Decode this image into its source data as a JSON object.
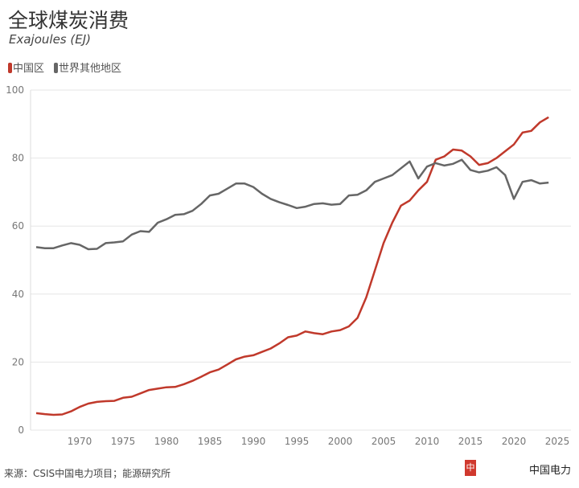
{
  "title": "全球煤炭消费",
  "subtitle": "Exajoules (EJ)",
  "source": "来源：CSIS中国电力项目；能源研究所",
  "brand": "中国电力",
  "chart_data": {
    "type": "line",
    "title": "全球煤炭消费",
    "ylabel": "Exajoules (EJ)",
    "ylim": [
      0,
      100
    ],
    "yticks": [
      0,
      20,
      40,
      60,
      80,
      100
    ],
    "xlim": [
      1965,
      2025
    ],
    "xticks": [
      1970,
      1975,
      1980,
      1985,
      1990,
      1995,
      2000,
      2005,
      2010,
      2015,
      2020,
      2025
    ],
    "grid": "horizontal",
    "legend": "top-left",
    "x": [
      1965,
      1966,
      1967,
      1968,
      1969,
      1970,
      1971,
      1972,
      1973,
      1974,
      1975,
      1976,
      1977,
      1978,
      1979,
      1980,
      1981,
      1982,
      1983,
      1984,
      1985,
      1986,
      1987,
      1988,
      1989,
      1990,
      1991,
      1992,
      1993,
      1994,
      1995,
      1996,
      1997,
      1998,
      1999,
      2000,
      2001,
      2002,
      2003,
      2004,
      2005,
      2006,
      2007,
      2008,
      2009,
      2010,
      2011,
      2012,
      2013,
      2014,
      2015,
      2016,
      2017,
      2018,
      2019,
      2020,
      2021,
      2022,
      2023,
      2024
    ],
    "series": [
      {
        "name": "中国区",
        "color": "#c0392b",
        "values": [
          5,
          4.7,
          4.5,
          4.6,
          5.5,
          6.8,
          7.8,
          8.3,
          8.5,
          8.6,
          9.5,
          9.8,
          10.8,
          11.8,
          12.2,
          12.6,
          12.7,
          13.5,
          14.5,
          15.7,
          17,
          17.8,
          19.3,
          20.8,
          21.6,
          22,
          23,
          24,
          25.5,
          27.3,
          27.8,
          29,
          28.5,
          28.2,
          29,
          29.4,
          30.5,
          33,
          39,
          47,
          55,
          61,
          66,
          67.5,
          70.5,
          73,
          79.5,
          80.5,
          82.5,
          82.2,
          80.5,
          78,
          78.5,
          80,
          82,
          84,
          87.5,
          88,
          90.5,
          92
        ]
      },
      {
        "name": "世界其他地区",
        "color": "#666666",
        "values": [
          53.8,
          53.5,
          53.5,
          54.3,
          55,
          54.5,
          53.2,
          53.3,
          55,
          55.2,
          55.5,
          57.5,
          58.5,
          58.3,
          61,
          62,
          63.3,
          63.5,
          64.5,
          66.5,
          69,
          69.5,
          71,
          72.5,
          72.5,
          71.5,
          69.5,
          68,
          67,
          66.2,
          65.3,
          65.7,
          66.5,
          66.7,
          66.3,
          66.5,
          69,
          69.2,
          70.5,
          73,
          74,
          75,
          77,
          79,
          74,
          77.5,
          78.5,
          77.8,
          78.3,
          79.5,
          76.5,
          75.8,
          76.3,
          77.3,
          75,
          68,
          73,
          73.5,
          72.5,
          72.8
        ]
      }
    ]
  }
}
